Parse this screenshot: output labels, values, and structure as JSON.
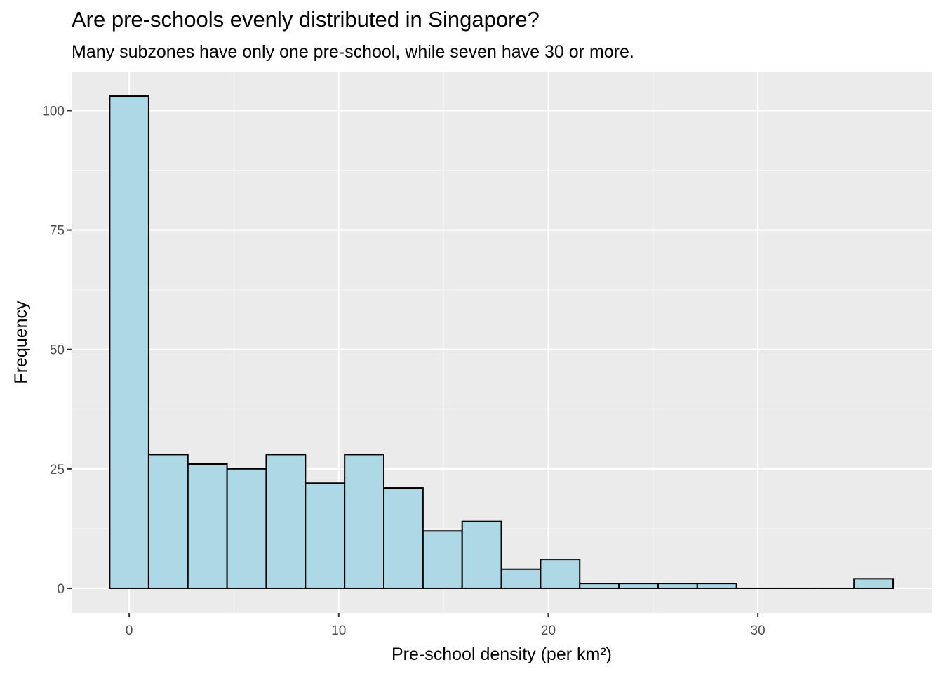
{
  "chart_data": {
    "type": "bar",
    "title": "Are pre-schools evenly distributed in Singapore?",
    "subtitle": "Many subzones have only one pre-school, while seven have 30 or more.",
    "xlabel": "Pre-school density (per km²)",
    "ylabel": "Frequency",
    "bin_width": 1.87,
    "bins": [
      {
        "x_start": -0.93,
        "x_end": 0.93,
        "count": 103
      },
      {
        "x_start": 0.93,
        "x_end": 2.8,
        "count": 28
      },
      {
        "x_start": 2.8,
        "x_end": 4.67,
        "count": 26
      },
      {
        "x_start": 4.67,
        "x_end": 6.54,
        "count": 25
      },
      {
        "x_start": 6.54,
        "x_end": 8.41,
        "count": 28
      },
      {
        "x_start": 8.41,
        "x_end": 10.28,
        "count": 22
      },
      {
        "x_start": 10.28,
        "x_end": 12.15,
        "count": 28
      },
      {
        "x_start": 12.15,
        "x_end": 14.02,
        "count": 21
      },
      {
        "x_start": 14.02,
        "x_end": 15.89,
        "count": 12
      },
      {
        "x_start": 15.89,
        "x_end": 17.76,
        "count": 14
      },
      {
        "x_start": 17.76,
        "x_end": 19.63,
        "count": 4
      },
      {
        "x_start": 19.63,
        "x_end": 21.5,
        "count": 6
      },
      {
        "x_start": 21.5,
        "x_end": 23.37,
        "count": 1
      },
      {
        "x_start": 23.37,
        "x_end": 25.24,
        "count": 1
      },
      {
        "x_start": 25.24,
        "x_end": 27.11,
        "count": 1
      },
      {
        "x_start": 27.11,
        "x_end": 28.98,
        "count": 1
      },
      {
        "x_start": 28.98,
        "x_end": 30.85,
        "count": 0
      },
      {
        "x_start": 30.85,
        "x_end": 32.72,
        "count": 0
      },
      {
        "x_start": 32.72,
        "x_end": 34.59,
        "count": 0
      },
      {
        "x_start": 34.59,
        "x_end": 36.46,
        "count": 2
      }
    ],
    "xlim": [
      -2.75,
      38.3
    ],
    "ylim": [
      -5.15,
      108.15
    ],
    "x_ticks": [
      0,
      10,
      20,
      30
    ],
    "y_ticks": [
      0,
      25,
      50,
      75,
      100
    ],
    "grid": true,
    "colors": {
      "bar_fill": "#add8e6",
      "bar_stroke": "#000000",
      "panel_background": "#ebebeb",
      "grid_major": "#ffffff",
      "grid_minor": "#f5f5f5",
      "tick_label": "#4d4d4d"
    }
  }
}
